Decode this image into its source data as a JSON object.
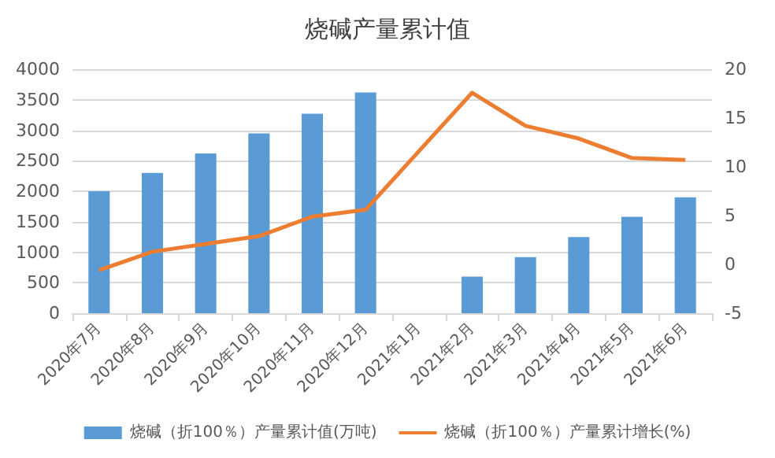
{
  "chart_data": {
    "type": "bar",
    "title": "烧碱产量累计值",
    "categories": [
      "2020年7月",
      "2020年8月",
      "2020年9月",
      "2020年10月",
      "2020年11月",
      "2020年12月",
      "2021年1月",
      "2021年2月",
      "2021年3月",
      "2021年4月",
      "2021年5月",
      "2021年6月"
    ],
    "series": [
      {
        "name": "烧碱（折100％）产量累计值(万吨)",
        "color": "#5b9bd5",
        "values": [
          2000,
          2300,
          2620,
          2950,
          3270,
          3620,
          null,
          600,
          920,
          1250,
          1580,
          1900
        ]
      },
      {
        "name": "烧碱（折100％）产量累计增长(%)",
        "type": "line",
        "axis": "y2",
        "color": "#ed7d31",
        "values": [
          -0.6,
          1.3,
          2.1,
          2.9,
          4.9,
          5.6,
          null,
          17.6,
          14.2,
          12.9,
          10.9,
          10.7
        ]
      }
    ],
    "ylim": [
      0,
      4000
    ],
    "yticks": [
      0,
      500,
      1000,
      1500,
      2000,
      2500,
      3000,
      3500,
      4000
    ],
    "y2lim": [
      -5,
      20
    ],
    "y2ticks": [
      -5,
      0,
      5,
      10,
      15,
      20
    ],
    "grid": "y",
    "legend": "bottom",
    "marker": "none",
    "line_style": "solid"
  }
}
